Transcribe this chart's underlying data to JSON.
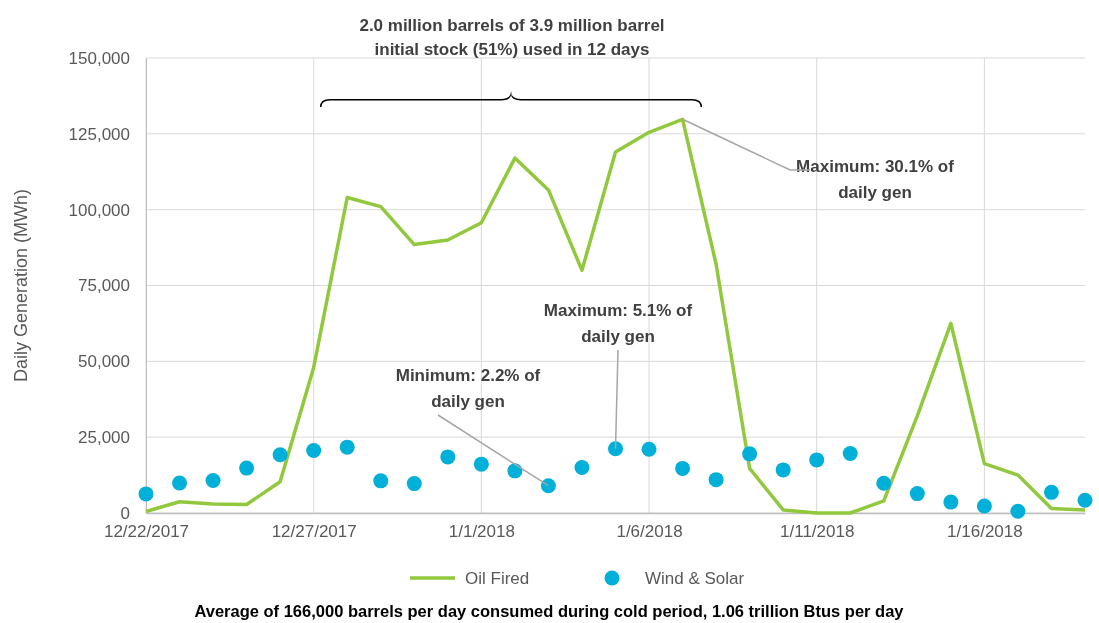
{
  "chart_data": {
    "type": "line",
    "ylabel": "Daily Generation (MWh)",
    "x": [
      "2017-12-22",
      "2017-12-23",
      "2017-12-24",
      "2017-12-25",
      "2017-12-26",
      "2017-12-27",
      "2017-12-28",
      "2017-12-29",
      "2017-12-30",
      "2017-12-31",
      "2018-01-01",
      "2018-01-02",
      "2018-01-03",
      "2018-01-04",
      "2018-01-05",
      "2018-01-06",
      "2018-01-07",
      "2018-01-08",
      "2018-01-09",
      "2018-01-10",
      "2018-01-11",
      "2018-01-12",
      "2018-01-13",
      "2018-01-14",
      "2018-01-15",
      "2018-01-16",
      "2018-01-17",
      "2018-01-18",
      "2018-01-19"
    ],
    "series": [
      {
        "name": "Oil Fired",
        "color": "#92c83e",
        "values": [
          500,
          3700,
          3000,
          2800,
          10300,
          48000,
          104000,
          101000,
          88500,
          90000,
          95700,
          117000,
          106500,
          80000,
          119000,
          125500,
          129800,
          82000,
          14700,
          1000,
          0,
          0,
          4000,
          32000,
          62500,
          16300,
          12500,
          1500,
          1000
        ]
      },
      {
        "name": "Wind & Solar",
        "type": "scatter",
        "marker": "circle",
        "color": "#00b0d8",
        "values": [
          6300,
          9900,
          10700,
          14800,
          19200,
          20600,
          21700,
          10600,
          9700,
          18500,
          16100,
          13900,
          9000,
          15000,
          21200,
          21000,
          14700,
          11000,
          19500,
          14200,
          17500,
          19600,
          9800,
          6400,
          3600,
          2300,
          600,
          6800,
          4200
        ]
      }
    ],
    "xlim": [
      "2017-12-22",
      "2018-01-19"
    ],
    "xticks": [
      {
        "value": "2017-12-22",
        "label": "12/22/2017"
      },
      {
        "value": "2017-12-27",
        "label": "12/27/2017"
      },
      {
        "value": "2018-01-01",
        "label": "1/1/2018"
      },
      {
        "value": "2018-01-06",
        "label": "1/6/2018"
      },
      {
        "value": "2018-01-11",
        "label": "1/11/2018"
      },
      {
        "value": "2018-01-16",
        "label": "1/16/2018"
      }
    ],
    "ylim": [
      0,
      150000
    ],
    "yticks": [
      {
        "value": 0,
        "label": "0"
      },
      {
        "value": 25000,
        "label": "25,000"
      },
      {
        "value": 50000,
        "label": "50,000"
      },
      {
        "value": 75000,
        "label": "75,000"
      },
      {
        "value": 100000,
        "label": "100,000"
      },
      {
        "value": 125000,
        "label": "125,000"
      },
      {
        "value": 150000,
        "label": "150,000"
      }
    ],
    "grid": true,
    "legend": "bottom",
    "annotations": [
      "2.0 million barrels of 3.9 million barrel initial stock (51%) used in 12 days",
      {
        "text": "Maximum: 30.1% of daily gen",
        "x": "2018-01-07",
        "y": 129800
      },
      {
        "text": "Maximum: 5.1% of daily gen",
        "x": "2018-01-05",
        "y": 21200
      },
      {
        "text": "Minimum: 2.2% of daily gen",
        "x": "2018-01-03",
        "y": 9000
      },
      "Average of 166,000 barrels per day consumed during cold period, 1.06 trillion Btus per day"
    ]
  }
}
